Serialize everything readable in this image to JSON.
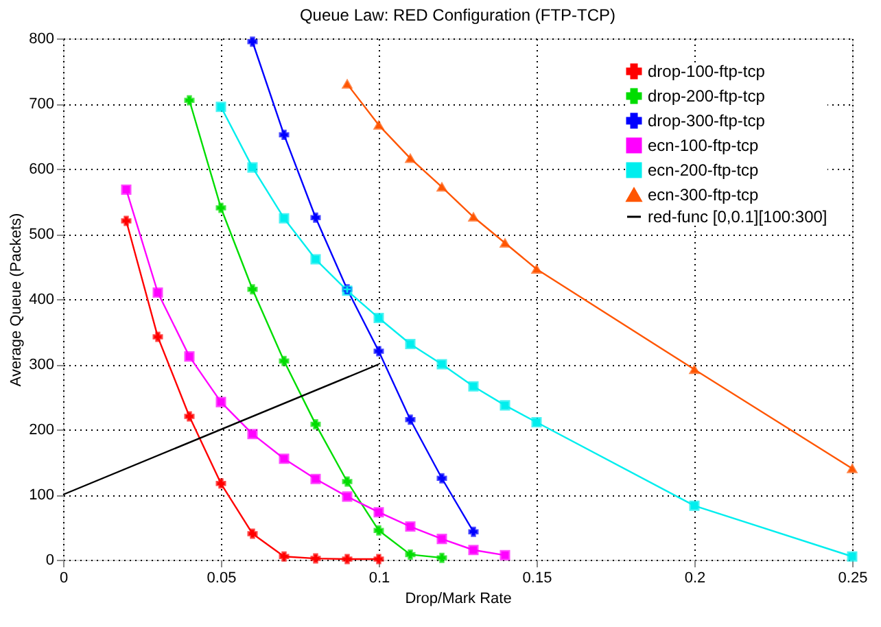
{
  "chart_data": {
    "type": "line",
    "title": "Queue Law: RED Configuration (FTP-TCP)",
    "xlabel": "Drop/Mark Rate",
    "ylabel": "Average Queue (Packets)",
    "xlim": [
      0,
      0.25
    ],
    "xticks": [
      0,
      0.05,
      0.1,
      0.15,
      0.2,
      0.25
    ],
    "ylim": [
      0,
      800
    ],
    "yticks": [
      0,
      100,
      200,
      300,
      400,
      500,
      600,
      700,
      800
    ],
    "grid": true,
    "legend": "top right",
    "series": [
      {
        "name": "drop-100-ftp-tcp",
        "color": "#ff0000",
        "marker": "cross",
        "x": [
          0.02,
          0.03,
          0.04,
          0.05,
          0.06,
          0.07,
          0.08,
          0.09,
          0.1
        ],
        "values": [
          520,
          342,
          220,
          117,
          40,
          5,
          2,
          1,
          1
        ]
      },
      {
        "name": "drop-200-ftp-tcp",
        "color": "#00dd00",
        "marker": "cross",
        "x": [
          0.04,
          0.05,
          0.06,
          0.07,
          0.08,
          0.09,
          0.1,
          0.11,
          0.12
        ],
        "values": [
          705,
          540,
          415,
          305,
          208,
          120,
          45,
          8,
          3
        ]
      },
      {
        "name": "drop-300-ftp-tcp",
        "color": "#0000ff",
        "marker": "cross",
        "x": [
          0.06,
          0.07,
          0.08,
          0.09,
          0.1,
          0.11,
          0.12,
          0.13
        ],
        "values": [
          795,
          652,
          525,
          415,
          320,
          215,
          125,
          43
        ]
      },
      {
        "name": "ecn-100-ftp-tcp",
        "color": "#ff00ff",
        "marker": "square",
        "x": [
          0.02,
          0.03,
          0.04,
          0.05,
          0.06,
          0.07,
          0.08,
          0.09,
          0.1,
          0.11,
          0.12,
          0.13,
          0.14
        ],
        "values": [
          568,
          410,
          312,
          242,
          193,
          155,
          124,
          97,
          73,
          51,
          32,
          15,
          7
        ]
      },
      {
        "name": "ecn-200-ftp-tcp",
        "color": "#00eeee",
        "marker": "square",
        "x": [
          0.05,
          0.06,
          0.07,
          0.08,
          0.09,
          0.1,
          0.11,
          0.12,
          0.13,
          0.14,
          0.15,
          0.2,
          0.25
        ],
        "values": [
          695,
          602,
          524,
          461,
          413,
          371,
          331,
          300,
          266,
          237,
          211,
          83,
          5
        ]
      },
      {
        "name": "ecn-300-ftp-tcp",
        "color": "#ff5500",
        "marker": "triangle",
        "x": [
          0.09,
          0.1,
          0.11,
          0.12,
          0.13,
          0.14,
          0.15,
          0.2,
          0.25
        ],
        "values": [
          730,
          667,
          616,
          572,
          526,
          486,
          446,
          292,
          140
        ]
      },
      {
        "name": "red-func [0,0.1][100:300]",
        "color": "#000000",
        "marker": "none",
        "x": [
          0,
          0.1
        ],
        "values": [
          100,
          300
        ]
      }
    ]
  }
}
